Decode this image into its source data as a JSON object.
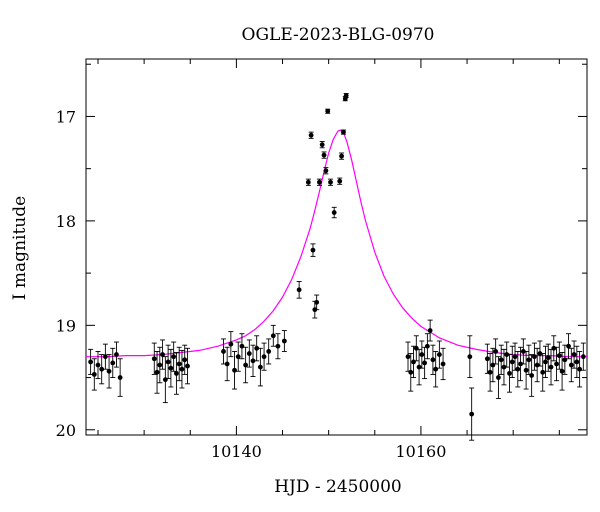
{
  "chart_data": {
    "type": "scatter",
    "title": "OGLE-2023-BLG-0970",
    "xlabel": "HJD - 2450000",
    "ylabel": "I magnitude",
    "xlim": [
      10123.7,
      10178.0
    ],
    "ylim": [
      20.05,
      16.45
    ],
    "y_inverted": true,
    "x_major_ticks": [
      10140,
      10160
    ],
    "y_major_ticks": [
      17,
      18,
      19,
      20
    ],
    "grid": false,
    "colors": {
      "points": "#000000",
      "model": "#ff00ff"
    },
    "series": [
      {
        "kind": "points_with_errors",
        "x": [
          10124.2,
          10124.6,
          10125.0,
          10125.4,
          10125.8,
          10126.2,
          10126.6,
          10127.0,
          10127.4,
          10131.1,
          10131.4,
          10131.7,
          10132.0,
          10132.3,
          10132.6,
          10132.9,
          10133.2,
          10133.5,
          10133.8,
          10134.1,
          10134.4,
          10134.7,
          10138.6,
          10139.0,
          10139.4,
          10139.8,
          10140.2,
          10140.6,
          10141.0,
          10141.4,
          10141.8,
          10142.2,
          10142.6,
          10143.0,
          10143.5,
          10144.0,
          10144.5,
          10145.2,
          10146.8,
          10147.8,
          10148.1,
          10148.3,
          10148.5,
          10148.7,
          10149.0,
          10149.3,
          10149.5,
          10149.7,
          10149.9,
          10150.2,
          10150.6,
          10151.2,
          10151.4,
          10151.6,
          10151.8,
          10151.9,
          10158.6,
          10158.9,
          10159.2,
          10159.5,
          10159.8,
          10160.1,
          10160.4,
          10160.7,
          10161.0,
          10161.3,
          10161.6,
          10162.0,
          10162.4,
          10165.3,
          10165.5,
          10167.2,
          10167.5,
          10167.8,
          10168.1,
          10168.4,
          10168.7,
          10169.0,
          10169.3,
          10169.6,
          10169.9,
          10170.2,
          10170.5,
          10170.8,
          10171.1,
          10171.4,
          10171.7,
          10172.0,
          10172.3,
          10172.6,
          10172.9,
          10173.2,
          10173.5,
          10173.8,
          10174.1,
          10174.4,
          10174.7,
          10175.0,
          10175.3,
          10175.6,
          10176.0,
          10176.3,
          10176.6,
          10176.9,
          10177.2,
          10177.6
        ],
        "y": [
          19.35,
          19.47,
          19.38,
          19.42,
          19.3,
          19.44,
          19.36,
          19.28,
          19.5,
          19.32,
          19.45,
          19.38,
          19.28,
          19.52,
          19.35,
          19.41,
          19.3,
          19.46,
          19.37,
          19.42,
          19.33,
          19.39,
          19.25,
          19.37,
          19.18,
          19.43,
          19.3,
          19.2,
          19.38,
          19.27,
          19.34,
          19.22,
          19.4,
          19.3,
          19.25,
          19.1,
          19.2,
          19.15,
          18.66,
          17.63,
          17.18,
          18.28,
          18.85,
          18.78,
          17.63,
          17.27,
          17.37,
          17.52,
          16.95,
          17.63,
          17.92,
          17.62,
          17.38,
          17.15,
          16.83,
          16.8,
          19.3,
          19.45,
          19.35,
          19.22,
          19.4,
          19.28,
          19.36,
          19.2,
          19.05,
          19.33,
          19.42,
          19.28,
          19.37,
          19.3,
          19.85,
          19.32,
          19.45,
          19.38,
          19.25,
          19.5,
          19.33,
          19.4,
          19.28,
          19.46,
          19.35,
          19.3,
          19.42,
          19.37,
          19.25,
          19.43,
          19.33,
          19.48,
          19.3,
          19.38,
          19.27,
          19.45,
          19.35,
          19.31,
          19.4,
          19.22,
          19.37,
          19.29,
          19.44,
          19.33,
          19.2,
          19.38,
          19.28,
          19.35,
          19.42,
          19.3
        ],
        "yerr": [
          0.12,
          0.15,
          0.13,
          0.14,
          0.12,
          0.16,
          0.14,
          0.12,
          0.18,
          0.15,
          0.2,
          0.17,
          0.14,
          0.22,
          0.16,
          0.18,
          0.14,
          0.2,
          0.16,
          0.18,
          0.14,
          0.17,
          0.12,
          0.16,
          0.12,
          0.18,
          0.14,
          0.12,
          0.17,
          0.13,
          0.15,
          0.12,
          0.18,
          0.13,
          0.12,
          0.1,
          0.12,
          0.1,
          0.08,
          0.03,
          0.03,
          0.06,
          0.08,
          0.07,
          0.03,
          0.03,
          0.03,
          0.03,
          0.02,
          0.03,
          0.05,
          0.03,
          0.03,
          0.02,
          0.02,
          0.02,
          0.14,
          0.18,
          0.15,
          0.12,
          0.17,
          0.13,
          0.15,
          0.12,
          0.1,
          0.14,
          0.17,
          0.13,
          0.15,
          0.2,
          0.25,
          0.14,
          0.18,
          0.16,
          0.12,
          0.2,
          0.14,
          0.17,
          0.12,
          0.18,
          0.15,
          0.13,
          0.17,
          0.16,
          0.12,
          0.18,
          0.14,
          0.2,
          0.13,
          0.16,
          0.12,
          0.18,
          0.15,
          0.13,
          0.17,
          0.12,
          0.16,
          0.13,
          0.18,
          0.14,
          0.12,
          0.16,
          0.13,
          0.15,
          0.17,
          0.13
        ]
      },
      {
        "kind": "model_line",
        "x": [
          10123.7,
          10126,
          10128,
          10130,
          10132,
          10134,
          10136,
          10138,
          10140,
          10141,
          10142,
          10143,
          10144,
          10145,
          10146,
          10147,
          10148,
          10148.5,
          10149,
          10149.5,
          10150,
          10150.5,
          10151,
          10151.3,
          10151.6,
          10152,
          10152.5,
          10153,
          10153.5,
          10154,
          10155,
          10156,
          10157,
          10158,
          10159,
          10160,
          10162,
          10164,
          10166,
          10168,
          10170,
          10172,
          10174,
          10176,
          10178
        ],
        "y": [
          19.3,
          19.3,
          19.29,
          19.29,
          19.28,
          19.26,
          19.24,
          19.2,
          19.14,
          19.1,
          19.04,
          18.96,
          18.86,
          18.73,
          18.56,
          18.34,
          18.07,
          17.9,
          17.72,
          17.53,
          17.35,
          17.22,
          17.14,
          17.13,
          17.15,
          17.25,
          17.42,
          17.62,
          17.82,
          18.0,
          18.3,
          18.53,
          18.7,
          18.83,
          18.93,
          19.01,
          19.12,
          19.19,
          19.23,
          19.26,
          19.28,
          19.29,
          19.29,
          19.3,
          19.3
        ]
      }
    ]
  }
}
